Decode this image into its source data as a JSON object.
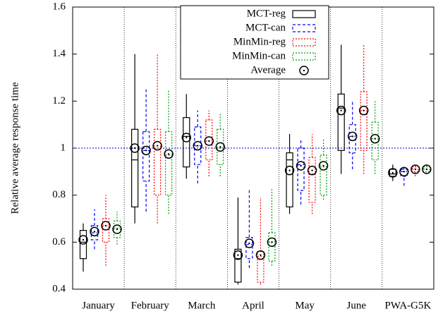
{
  "chart_data": {
    "type": "box",
    "y_label": "Relative average response time",
    "categories": [
      "January",
      "February",
      "March",
      "April",
      "May",
      "June",
      "PWA-G5K"
    ],
    "ylim": [
      0.4,
      1.6
    ],
    "yticks": [
      0.4,
      0.6,
      0.8,
      1,
      1.2,
      1.4,
      1.6
    ],
    "reference_line": 1,
    "reference_color": "#0000cc",
    "group_separators": true,
    "legend_position": "upper center",
    "mean_label": "Average",
    "series": [
      {
        "name": "MCT-reg",
        "color": "#000000",
        "dash": "solid",
        "min": [
          0.475,
          0.68,
          0.87,
          0.42,
          0.72,
          0.89,
          0.86
        ],
        "q1": [
          0.53,
          0.75,
          0.92,
          0.43,
          0.75,
          0.99,
          0.88
        ],
        "median": [
          0.6,
          0.95,
          1.05,
          0.53,
          0.95,
          1.17,
          0.89
        ],
        "q3": [
          0.65,
          1.08,
          1.13,
          0.57,
          0.98,
          1.23,
          0.91
        ],
        "max": [
          0.68,
          1.4,
          1.23,
          0.79,
          1.06,
          1.44,
          0.93
        ],
        "mean": [
          0.61,
          1.0,
          1.045,
          0.545,
          0.905,
          1.16,
          0.895
        ]
      },
      {
        "name": "MCT-can",
        "color": "#0000ff",
        "dash": "dashed",
        "min": [
          0.57,
          0.73,
          0.85,
          0.49,
          0.76,
          0.91,
          0.84
        ],
        "q1": [
          0.61,
          0.86,
          0.93,
          0.53,
          0.82,
          0.98,
          0.88
        ],
        "median": [
          0.64,
          0.99,
          1.01,
          0.59,
          0.93,
          1.05,
          0.9
        ],
        "q3": [
          0.67,
          1.07,
          1.09,
          0.62,
          1.0,
          1.1,
          0.91
        ],
        "max": [
          0.74,
          1.25,
          1.16,
          0.83,
          1.04,
          1.2,
          0.92
        ],
        "mean": [
          0.645,
          0.99,
          1.01,
          0.595,
          0.925,
          1.05,
          0.9
        ]
      },
      {
        "name": "MinMin-reg",
        "color": "#ff0000",
        "dash": "dotted",
        "min": [
          0.5,
          0.68,
          0.88,
          0.42,
          0.72,
          0.89,
          0.88
        ],
        "q1": [
          0.6,
          0.8,
          0.95,
          0.43,
          0.77,
          0.99,
          0.9
        ],
        "median": [
          0.67,
          1.0,
          1.03,
          0.54,
          0.89,
          1.16,
          0.91
        ],
        "q3": [
          0.7,
          1.08,
          1.12,
          0.56,
          0.96,
          1.24,
          0.92
        ],
        "max": [
          0.8,
          1.4,
          1.16,
          0.79,
          1.06,
          1.44,
          0.93
        ],
        "mean": [
          0.67,
          1.01,
          1.03,
          0.545,
          0.905,
          1.16,
          0.91
        ]
      },
      {
        "name": "MinMin-can",
        "color": "#00a000",
        "dash": "dotted",
        "min": [
          0.59,
          0.72,
          0.88,
          0.5,
          0.78,
          0.89,
          0.89
        ],
        "q1": [
          0.62,
          0.8,
          0.93,
          0.52,
          0.8,
          0.95,
          0.9
        ],
        "median": [
          0.66,
          0.97,
          1.0,
          0.6,
          0.92,
          1.04,
          0.91
        ],
        "q3": [
          0.69,
          1.07,
          1.08,
          0.64,
          0.97,
          1.11,
          0.92
        ],
        "max": [
          0.73,
          1.25,
          1.15,
          0.83,
          1.04,
          1.2,
          0.93
        ],
        "mean": [
          0.655,
          0.975,
          1.005,
          0.6,
          0.925,
          1.04,
          0.91
        ]
      }
    ]
  }
}
